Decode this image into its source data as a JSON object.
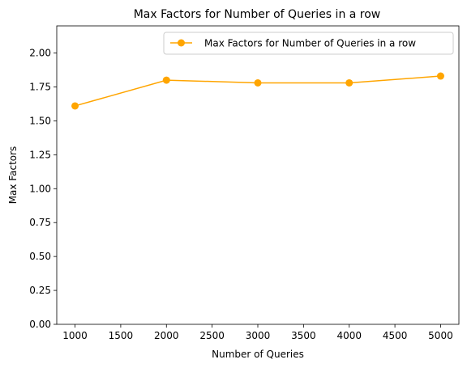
{
  "chart_data": {
    "type": "line",
    "title": "Max Factors for Number of Queries in a row",
    "xlabel": "Number of Queries",
    "ylabel": "Max Factors",
    "x": [
      1000,
      2000,
      3000,
      4000,
      5000
    ],
    "series": [
      {
        "name": "Max Factors for Number of Queries in a row",
        "values": [
          1.61,
          1.8,
          1.78,
          1.78,
          1.83
        ],
        "color": "#ffa500",
        "marker": "circle"
      }
    ],
    "xlim": [
      800,
      5200
    ],
    "ylim": [
      0,
      2.2
    ],
    "xticks": [
      1000,
      1500,
      2000,
      2500,
      3000,
      3500,
      4000,
      4500,
      5000
    ],
    "yticks": [
      0.0,
      0.25,
      0.5,
      0.75,
      1.0,
      1.25,
      1.5,
      1.75,
      2.0
    ],
    "xtick_labels": [
      "1000",
      "1500",
      "2000",
      "2500",
      "3000",
      "3500",
      "4000",
      "4500",
      "5000"
    ],
    "ytick_labels": [
      "0.00",
      "0.25",
      "0.50",
      "0.75",
      "1.00",
      "1.25",
      "1.50",
      "1.75",
      "2.00"
    ],
    "grid": false,
    "legend_position": "top-right"
  }
}
